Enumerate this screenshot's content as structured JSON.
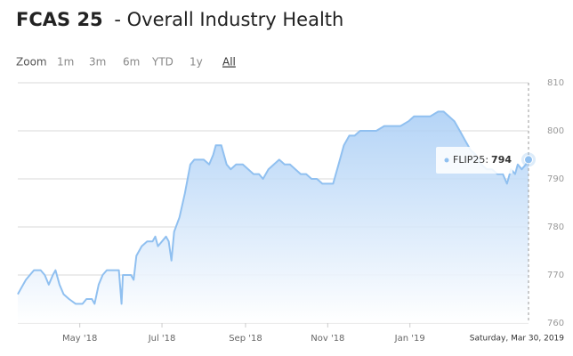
{
  "chart_data": {
    "type": "area",
    "title": "FCAS 25",
    "subtitle": "- Overall Industry Health",
    "range_selector": {
      "label": "Zoom",
      "buttons": [
        "1m",
        "3m",
        "6m",
        "YTD",
        "1y",
        "All"
      ],
      "selected_index": 5
    },
    "color": "#90c0f0",
    "fill_color": "#a8cdf5",
    "grid": true,
    "x": [
      "2018-03-16",
      "2018-03-18",
      "2018-03-22",
      "2018-03-25",
      "2018-03-28",
      "2018-04-02",
      "2018-04-05",
      "2018-04-08",
      "2018-04-11",
      "2018-04-13",
      "2018-04-16",
      "2018-04-19",
      "2018-04-23",
      "2018-04-28",
      "2018-05-03",
      "2018-05-06",
      "2018-05-10",
      "2018-05-12",
      "2018-05-15",
      "2018-05-18",
      "2018-05-21",
      "2018-05-26",
      "2018-05-30",
      "2018-06-01",
      "2018-06-02",
      "2018-06-08",
      "2018-06-10",
      "2018-06-12",
      "2018-06-16",
      "2018-06-20",
      "2018-06-24",
      "2018-06-26",
      "2018-06-28",
      "2018-07-01",
      "2018-07-04",
      "2018-07-06",
      "2018-07-08",
      "2018-07-10",
      "2018-07-14",
      "2018-07-18",
      "2018-07-22",
      "2018-07-25",
      "2018-08-01",
      "2018-08-05",
      "2018-08-08",
      "2018-08-10",
      "2018-08-14",
      "2018-08-18",
      "2018-08-21",
      "2018-08-25",
      "2018-08-30",
      "2018-09-03",
      "2018-09-07",
      "2018-09-11",
      "2018-09-14",
      "2018-09-18",
      "2018-09-22",
      "2018-09-26",
      "2018-09-30",
      "2018-10-04",
      "2018-10-08",
      "2018-10-12",
      "2018-10-16",
      "2018-10-20",
      "2018-10-24",
      "2018-10-28",
      "2018-11-01",
      "2018-11-05",
      "2018-11-09",
      "2018-11-13",
      "2018-11-17",
      "2018-11-21",
      "2018-11-25",
      "2018-12-01",
      "2018-12-07",
      "2018-12-13",
      "2018-12-19",
      "2018-12-25",
      "2018-12-31",
      "2019-01-04",
      "2019-01-10",
      "2019-01-16",
      "2019-01-22",
      "2019-01-26",
      "2019-01-30",
      "2019-02-03",
      "2019-02-07",
      "2019-02-11",
      "2019-02-15",
      "2019-02-19",
      "2019-02-23",
      "2019-02-27",
      "2019-03-03",
      "2019-03-07",
      "2019-03-11",
      "2019-03-14",
      "2019-03-17",
      "2019-03-20",
      "2019-03-22",
      "2019-03-25",
      "2019-03-28",
      "2019-03-30"
    ],
    "values": [
      766,
      767,
      769,
      770,
      771,
      771,
      770,
      768,
      770,
      771,
      768,
      766,
      765,
      764,
      764,
      765,
      765,
      764,
      768,
      770,
      771,
      771,
      771,
      764,
      770,
      770,
      769,
      774,
      776,
      777,
      777,
      778,
      776,
      777,
      778,
      777,
      773,
      779,
      782,
      787,
      793,
      794,
      794,
      793,
      795,
      797,
      797,
      793,
      792,
      793,
      793,
      792,
      791,
      791,
      790,
      792,
      793,
      794,
      793,
      793,
      792,
      791,
      791,
      790,
      790,
      789,
      789,
      789,
      793,
      797,
      799,
      799,
      800,
      800,
      800,
      801,
      801,
      801,
      802,
      803,
      803,
      803,
      804,
      804,
      803,
      802,
      800,
      798,
      796,
      795,
      793,
      792,
      792,
      791,
      791,
      789,
      792,
      791,
      793,
      792,
      793,
      794
    ],
    "xlim": [
      "2018-03-16",
      "2019-03-30"
    ],
    "xticks": [
      {
        "value": "2018-05-01",
        "label": "May '18"
      },
      {
        "value": "2018-07-01",
        "label": "Jul '18"
      },
      {
        "value": "2018-09-01",
        "label": "Sep '18"
      },
      {
        "value": "2018-11-01",
        "label": "Nov '18"
      },
      {
        "value": "2019-01-01",
        "label": "Jan '19"
      }
    ],
    "ylim": [
      760,
      810
    ],
    "yticks": [
      760,
      770,
      780,
      790,
      800,
      810
    ],
    "crosshair_label": "Saturday, Mar 30, 2019",
    "tooltip": {
      "series": "FLIP25:",
      "value": 794
    }
  }
}
